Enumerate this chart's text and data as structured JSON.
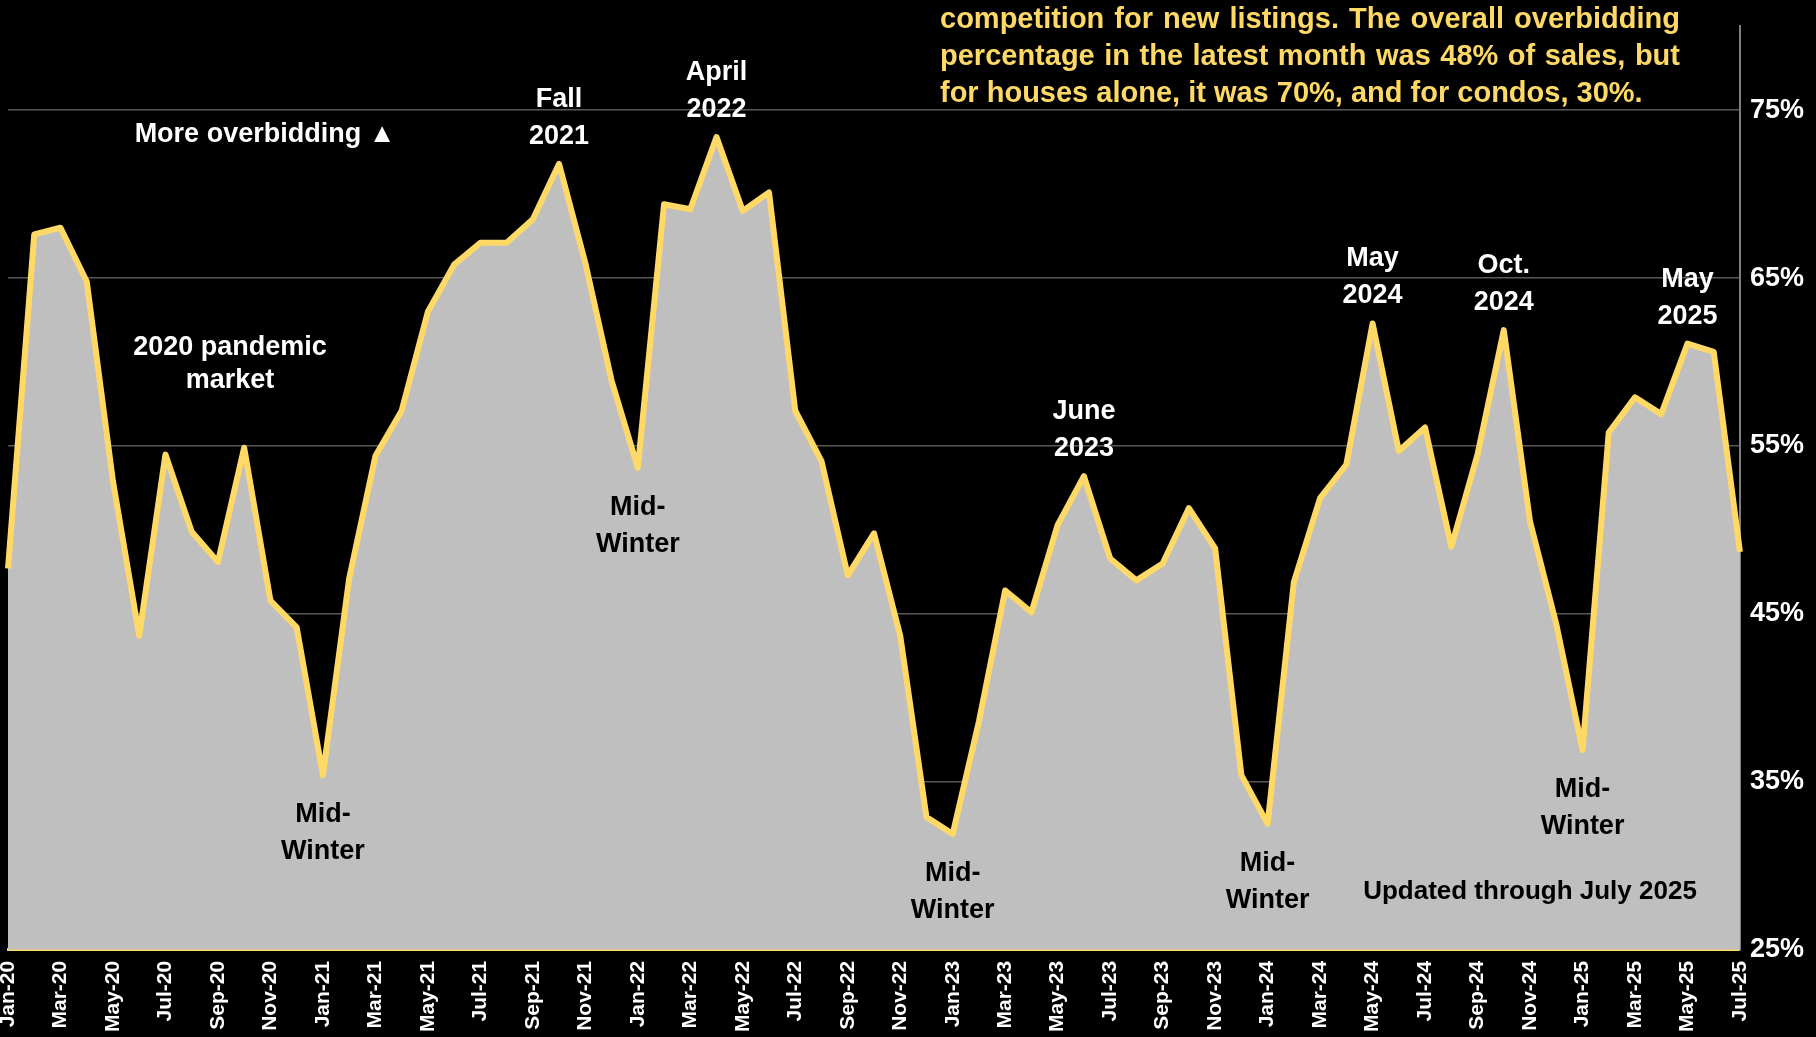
{
  "chart_data": {
    "type": "area",
    "categories": [
      "Jan-20",
      null,
      "Mar-20",
      null,
      "May-20",
      null,
      "Jul-20",
      null,
      "Sep-20",
      null,
      "Nov-20",
      null,
      "Jan-21",
      null,
      "Mar-21",
      null,
      "May-21",
      null,
      "Jul-21",
      null,
      "Sep-21",
      null,
      "Nov-21",
      null,
      "Jan-22",
      null,
      "Mar-22",
      null,
      "May-22",
      null,
      "Jul-22",
      null,
      "Sep-22",
      null,
      "Nov-22",
      null,
      "Jan-23",
      null,
      "Mar-23",
      null,
      "May-23",
      null,
      "Jul-23",
      null,
      "Sep-23",
      null,
      "Nov-23",
      null,
      "Jan-24",
      null,
      "Mar-24",
      null,
      "May-24",
      null,
      "Jul-24",
      null,
      "Sep-24",
      null,
      "Nov-24",
      null,
      "Jan-25",
      null,
      "Mar-25",
      null,
      "May-25",
      null,
      "Jul-25"
    ],
    "series": [
      {
        "color": "#ffd966",
        "values": [
          47.7,
          67.6,
          68.0,
          64.8,
          52.9,
          43.7,
          54.5,
          49.9,
          48.1,
          54.9,
          45.8,
          44.2,
          35.4,
          47.1,
          54.4,
          57.1,
          63.0,
          65.8,
          67.1,
          67.1,
          68.5,
          71.8,
          65.9,
          58.9,
          53.7,
          69.4,
          69.1,
          73.4,
          69.0,
          70.1,
          57.1,
          54.1,
          47.3,
          49.8,
          43.7,
          32.9,
          31.9,
          38.6,
          46.4,
          45.1,
          50.3,
          53.2,
          48.3,
          47.0,
          48.0,
          51.3,
          48.9,
          35.4,
          32.5,
          46.9,
          51.9,
          53.9,
          62.3,
          54.7,
          56.1,
          49.0,
          54.5,
          61.9,
          50.5,
          44.4,
          36.9,
          55.8,
          57.9,
          56.9,
          61.1,
          60.6,
          48.7
        ]
      }
    ],
    "ylim": [
      25,
      80
    ],
    "yticks": [
      {
        "value": 25,
        "label": "25%"
      },
      {
        "value": 35,
        "label": "35%"
      },
      {
        "value": 45,
        "label": "45%"
      },
      {
        "value": 55,
        "label": "55%"
      },
      {
        "value": 65,
        "label": "65%"
      },
      {
        "value": 75,
        "label": "75%"
      }
    ],
    "grid": "y",
    "legend": false,
    "annotations": [
      "competition for new listings. The overall overbidding percentage in the latest month was 48% of sales, but for houses alone, it was 70%, and for condos, 30%.",
      "More overbidding ▲",
      "2020 pandemic market",
      "Updated through July 2025",
      {
        "text": "Mid-\nWinter",
        "x": "Jan-21",
        "y": 35.4
      },
      {
        "text": "Fall\n2021",
        "y": 71.8
      },
      {
        "text": "Mid-\nWinter",
        "x": "Jan-22",
        "y": 53.7
      },
      {
        "text": "April\n2022",
        "y": 73.4
      },
      {
        "text": "Mid-\nWinter",
        "x": "Jan-23",
        "y": 31.9
      },
      {
        "text": "June\n2023",
        "y": 53.2
      },
      {
        "text": "Mid-\nWinter",
        "x": "Jan-24",
        "y": 32.5
      },
      {
        "text": "May\n2024",
        "x": "May-24",
        "y": 62.3
      },
      {
        "text": "Oct.\n2024",
        "y": 61.9
      },
      {
        "text": "Mid-\nWinter",
        "x": "Jan-25",
        "y": 36.9
      },
      {
        "text": "May\n2025",
        "y": 61.1
      }
    ]
  }
}
